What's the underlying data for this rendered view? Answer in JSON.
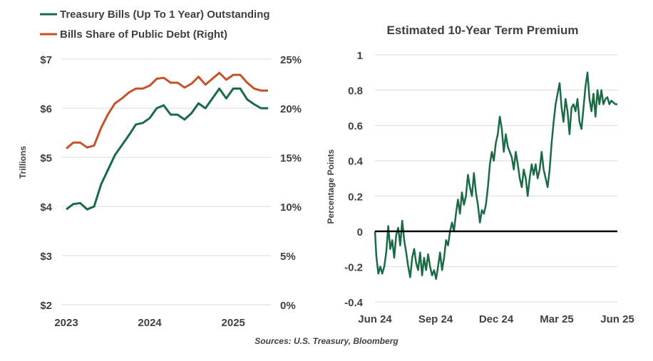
{
  "colors": {
    "treasury": "#1a6b45",
    "share": "#c5522a",
    "premium": "#1a6b45",
    "zero_line": "#000000",
    "grid": "#d9d9d9"
  },
  "source": "Sources: U.S. Treasury, Bloomberg",
  "chart_data": [
    {
      "type": "line",
      "title": "",
      "legend": [
        "Treasury Bills (Up To 1 Year) Outstanding",
        "Bills Share of Public Debt (Right)"
      ],
      "xlabel": "",
      "ylabel": "Trillions",
      "x_ticks": [
        "2023",
        "2024",
        "2025"
      ],
      "y_ticks": [
        "$2",
        "$3",
        "$4",
        "$5",
        "$6",
        "$7"
      ],
      "y2_ticks": [
        "0%",
        "5%",
        "10%",
        "15%",
        "20%",
        "25%"
      ],
      "ylim": [
        2,
        7
      ],
      "y2lim": [
        0,
        25
      ],
      "x": [
        "2023-01",
        "2023-02",
        "2023-03",
        "2023-04",
        "2023-05",
        "2023-06",
        "2023-07",
        "2023-08",
        "2023-09",
        "2023-10",
        "2023-11",
        "2023-12",
        "2024-01",
        "2024-02",
        "2024-03",
        "2024-04",
        "2024-05",
        "2024-06",
        "2024-07",
        "2024-08",
        "2024-09",
        "2024-10",
        "2024-11",
        "2024-12",
        "2025-01",
        "2025-02",
        "2025-03",
        "2025-04",
        "2025-05",
        "2025-06"
      ],
      "series": [
        {
          "name": "Treasury Bills (Up To 1 Year) Outstanding",
          "axis": "left",
          "values": [
            3.94,
            4.05,
            4.07,
            3.94,
            4.0,
            4.45,
            4.75,
            5.05,
            5.25,
            5.45,
            5.67,
            5.7,
            5.8,
            6.0,
            6.06,
            5.87,
            5.87,
            5.77,
            5.9,
            6.1,
            6.0,
            6.2,
            6.4,
            6.2,
            6.4,
            6.4,
            6.18,
            6.08,
            6.0,
            6.0
          ]
        },
        {
          "name": "Bills Share of Public Debt (Right)",
          "axis": "right",
          "values": [
            15.9,
            16.5,
            16.5,
            16.0,
            16.2,
            18.0,
            19.4,
            20.5,
            21.0,
            21.6,
            22.0,
            22.0,
            22.3,
            23.0,
            23.1,
            22.6,
            22.6,
            22.1,
            22.5,
            23.2,
            22.4,
            23.0,
            23.6,
            22.9,
            23.4,
            23.4,
            22.6,
            22.0,
            21.8,
            21.8
          ]
        }
      ]
    },
    {
      "type": "line",
      "title": "Estimated 10-Year Term Premium",
      "xlabel": "",
      "ylabel": "Percentage Points",
      "x_ticks": [
        "Jun 24",
        "Sep 24",
        "Dec 24",
        "Mar 25",
        "Jun 25"
      ],
      "y_ticks": [
        "1",
        "0.8",
        "0.6",
        "0.4",
        "0.2",
        "0",
        "-0.2",
        "-0.4"
      ],
      "ylim": [
        -0.4,
        1.0
      ],
      "xlim_days": [
        0,
        365
      ],
      "series": [
        {
          "name": "Estimated 10-Year Term Premium",
          "x_days": [
            0,
            2,
            5,
            8,
            11,
            14,
            17,
            20,
            23,
            26,
            29,
            32,
            35,
            38,
            41,
            44,
            47,
            50,
            53,
            56,
            59,
            62,
            65,
            68,
            71,
            74,
            77,
            80,
            83,
            86,
            89,
            92,
            95,
            98,
            101,
            104,
            107,
            110,
            113,
            116,
            119,
            122,
            125,
            128,
            131,
            134,
            137,
            140,
            143,
            146,
            149,
            152,
            155,
            158,
            161,
            164,
            167,
            170,
            173,
            176,
            179,
            182,
            185,
            188,
            191,
            194,
            197,
            200,
            203,
            206,
            209,
            212,
            215,
            218,
            221,
            224,
            227,
            230,
            233,
            236,
            239,
            242,
            245,
            248,
            251,
            254,
            257,
            260,
            263,
            266,
            269,
            272,
            275,
            278,
            281,
            284,
            287,
            290,
            293,
            296,
            299,
            302,
            305,
            308,
            311,
            314,
            317,
            320,
            323,
            326,
            329,
            332,
            335,
            338,
            341,
            344,
            347,
            350,
            353,
            356,
            359,
            362,
            365
          ],
          "values": [
            0.0,
            -0.14,
            -0.24,
            -0.2,
            -0.24,
            -0.2,
            -0.12,
            0.03,
            -0.1,
            -0.05,
            -0.15,
            -0.02,
            0.02,
            -0.08,
            0.06,
            -0.05,
            -0.12,
            -0.2,
            -0.26,
            -0.15,
            -0.1,
            -0.18,
            -0.22,
            -0.12,
            -0.25,
            -0.15,
            -0.22,
            -0.13,
            -0.2,
            -0.25,
            -0.22,
            -0.27,
            -0.2,
            -0.12,
            -0.22,
            -0.15,
            -0.05,
            -0.08,
            0.0,
            0.05,
            0.0,
            0.1,
            0.18,
            0.1,
            0.22,
            0.15,
            0.2,
            0.32,
            0.25,
            0.2,
            0.33,
            0.22,
            0.15,
            0.05,
            0.12,
            0.1,
            0.15,
            0.25,
            0.38,
            0.45,
            0.4,
            0.5,
            0.55,
            0.65,
            0.58,
            0.45,
            0.55,
            0.48,
            0.45,
            0.42,
            0.35,
            0.45,
            0.38,
            0.3,
            0.25,
            0.35,
            0.3,
            0.2,
            0.3,
            0.38,
            0.32,
            0.38,
            0.3,
            0.35,
            0.45,
            0.35,
            0.3,
            0.25,
            0.35,
            0.5,
            0.62,
            0.72,
            0.78,
            0.84,
            0.7,
            0.62,
            0.75,
            0.68,
            0.55,
            0.7,
            0.72,
            0.68,
            0.75,
            0.62,
            0.58,
            0.7,
            0.82,
            0.9,
            0.75,
            0.68,
            0.78,
            0.65,
            0.8,
            0.72,
            0.8,
            0.72,
            0.75,
            0.76,
            0.72,
            0.74,
            0.73,
            0.72,
            0.72
          ]
        }
      ]
    }
  ]
}
